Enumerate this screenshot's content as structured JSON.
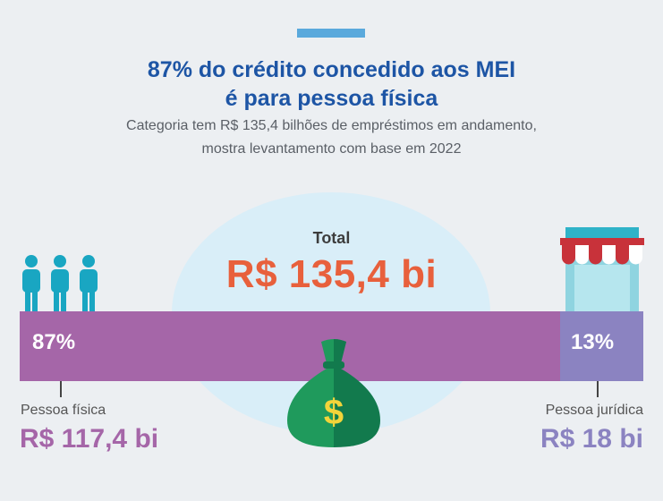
{
  "header": {
    "title_line1": "87% do crédito concedido aos MEI",
    "title_line2": "é para pessoa física",
    "subtitle_line1": "Categoria tem R$ 135,4 bilhões de empréstimos em andamento,",
    "subtitle_line2": "mostra levantamento com base em 2022"
  },
  "total": {
    "label": "Total",
    "value": "R$ 135,4 bi"
  },
  "chart_data": {
    "type": "bar",
    "orientation": "horizontal-stacked",
    "title": "87% do crédito concedido aos MEI é para pessoa física",
    "unit": "R$ bi",
    "total": 135.4,
    "categories": [
      "Pessoa física",
      "Pessoa jurídica"
    ],
    "values": [
      117.4,
      18
    ],
    "percent_labels": [
      "87%",
      "13%"
    ],
    "value_labels": [
      "R$ 117,4 bi",
      "R$ 18 bi"
    ],
    "colors": [
      "#a566a8",
      "#8b83c1"
    ]
  },
  "icons": {
    "left": "people-icon",
    "center": "money-bag-icon",
    "right": "store-icon"
  },
  "colors": {
    "title": "#1d55a5",
    "total": "#e8603c",
    "pf": "#a566a8",
    "pj": "#8b83c1",
    "accent": "#5aa9dc"
  }
}
